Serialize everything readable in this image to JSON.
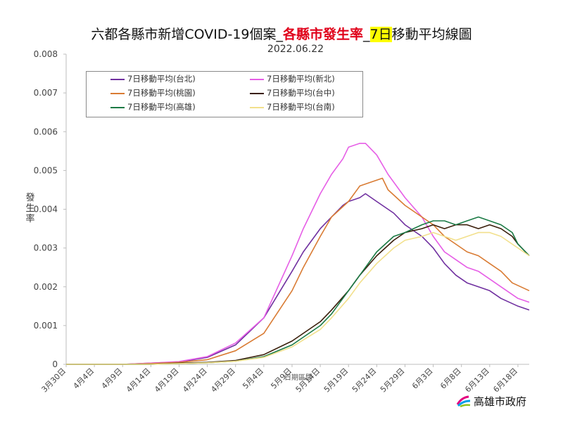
{
  "title": {
    "part1": "六都各縣市新增COVID-19個案_",
    "part2": "各縣市發生率",
    "part3": "_",
    "part4": "7日",
    "part5": "移動平均線圖"
  },
  "subtitle": "2022.06.22",
  "footer": "高雄市政府",
  "colors": {
    "accent_red": "#e0001a",
    "highlight": "#ffff00"
  },
  "chart_data": {
    "type": "line",
    "ylabel": "發\n生\n率",
    "xlabel": "日期區間",
    "ylim": [
      0,
      0.008
    ],
    "yticks": [
      "0",
      "0.001",
      "0.002",
      "0.003",
      "0.004",
      "0.005",
      "0.006",
      "0.007",
      "0.008"
    ],
    "x_start": "3月30日",
    "x_end": "6月20日",
    "x_ticks": [
      "3月30日",
      "4月4日",
      "4月9日",
      "4月14日",
      "4月19日",
      "4月24日",
      "4月29日",
      "5月4日",
      "5月9日",
      "5月14日",
      "5月19日",
      "5月24日",
      "5月29日",
      "6月3日",
      "6月8日",
      "6月13日",
      "6月18日"
    ],
    "grid": false,
    "legend_position": "top-left",
    "series": [
      {
        "name": "7日移動平均(台北)",
        "color": "#7030a0",
        "points": [
          [
            "3月30日",
            0
          ],
          [
            "4月9日",
            0
          ],
          [
            "4月14日",
            3e-05
          ],
          [
            "4月19日",
            6e-05
          ],
          [
            "4月24日",
            0.00018
          ],
          [
            "4月29日",
            0.0005
          ],
          [
            "5月4日",
            0.0012
          ],
          [
            "5月9日",
            0.0024
          ],
          [
            "5月11日",
            0.0029
          ],
          [
            "5月14日",
            0.0035
          ],
          [
            "5月16日",
            0.0038
          ],
          [
            "5月18日",
            0.0041
          ],
          [
            "5月19日",
            0.0042
          ],
          [
            "5月21日",
            0.0043
          ],
          [
            "5月22日",
            0.0044
          ],
          [
            "5月24日",
            0.0042
          ],
          [
            "5月27日",
            0.0039
          ],
          [
            "5月29日",
            0.0036
          ],
          [
            "6月1日",
            0.0033
          ],
          [
            "6月3日",
            0.003
          ],
          [
            "6月5日",
            0.0026
          ],
          [
            "6月7日",
            0.0023
          ],
          [
            "6月9日",
            0.0021
          ],
          [
            "6月11日",
            0.002
          ],
          [
            "6月13日",
            0.0019
          ],
          [
            "6月15日",
            0.0017
          ],
          [
            "6月18日",
            0.0015
          ],
          [
            "6月20日",
            0.0014
          ]
        ]
      },
      {
        "name": "7日移動平均(新北)",
        "color": "#e65ee6",
        "points": [
          [
            "3月30日",
            0
          ],
          [
            "4月9日",
            0
          ],
          [
            "4月14日",
            3e-05
          ],
          [
            "4月19日",
            7e-05
          ],
          [
            "4月24日",
            0.0002
          ],
          [
            "4月29日",
            0.00055
          ],
          [
            "5月4日",
            0.0012
          ],
          [
            "5月9日",
            0.0028
          ],
          [
            "5月11日",
            0.0035
          ],
          [
            "5月14日",
            0.0044
          ],
          [
            "5月16日",
            0.0049
          ],
          [
            "5月18日",
            0.0053
          ],
          [
            "5月19日",
            0.0056
          ],
          [
            "5月21日",
            0.0057
          ],
          [
            "5月22日",
            0.0057
          ],
          [
            "5月24日",
            0.0054
          ],
          [
            "5月26日",
            0.0049
          ],
          [
            "5月29日",
            0.0043
          ],
          [
            "6月1日",
            0.0038
          ],
          [
            "6月3日",
            0.0033
          ],
          [
            "6月5日",
            0.0029
          ],
          [
            "6月7日",
            0.0027
          ],
          [
            "6月9日",
            0.0025
          ],
          [
            "6月11日",
            0.0024
          ],
          [
            "6月13日",
            0.0022
          ],
          [
            "6月15日",
            0.002
          ],
          [
            "6月18日",
            0.0017
          ],
          [
            "6月20日",
            0.0016
          ]
        ]
      },
      {
        "name": "7日移動平均(桃園)",
        "color": "#d97b33",
        "points": [
          [
            "3月30日",
            0
          ],
          [
            "4月9日",
            0
          ],
          [
            "4月14日",
            2e-05
          ],
          [
            "4月19日",
            5e-05
          ],
          [
            "4月24日",
            0.00012
          ],
          [
            "4月29日",
            0.00035
          ],
          [
            "5月4日",
            0.0008
          ],
          [
            "5月9日",
            0.0019
          ],
          [
            "5月11日",
            0.0025
          ],
          [
            "5月14日",
            0.0033
          ],
          [
            "5月16日",
            0.0038
          ],
          [
            "5月19日",
            0.0042
          ],
          [
            "5月21日",
            0.0046
          ],
          [
            "5月23日",
            0.0047
          ],
          [
            "5月25日",
            0.0048
          ],
          [
            "5月26日",
            0.0045
          ],
          [
            "5月29日",
            0.0041
          ],
          [
            "6月1日",
            0.0038
          ],
          [
            "6月3日",
            0.0036
          ],
          [
            "6月5日",
            0.0033
          ],
          [
            "6月7日",
            0.0031
          ],
          [
            "6月9日",
            0.0029
          ],
          [
            "6月11日",
            0.0028
          ],
          [
            "6月13日",
            0.0026
          ],
          [
            "6月15日",
            0.0024
          ],
          [
            "6月17日",
            0.0021
          ],
          [
            "6月20日",
            0.0019
          ]
        ]
      },
      {
        "name": "7日移動平均(台中)",
        "color": "#3a1f0b",
        "points": [
          [
            "3月30日",
            0
          ],
          [
            "4月14日",
            0
          ],
          [
            "4月19日",
            3e-05
          ],
          [
            "4月24日",
            5e-05
          ],
          [
            "4月29日",
            0.0001
          ],
          [
            "5月4日",
            0.00025
          ],
          [
            "5月9日",
            0.0006
          ],
          [
            "5月14日",
            0.0011
          ],
          [
            "5月16日",
            0.0014
          ],
          [
            "5月19日",
            0.0019
          ],
          [
            "5月21日",
            0.0023
          ],
          [
            "5月24日",
            0.0028
          ],
          [
            "5月27日",
            0.0032
          ],
          [
            "5月29日",
            0.0034
          ],
          [
            "6月1日",
            0.0035
          ],
          [
            "6月3日",
            0.0036
          ],
          [
            "6月5日",
            0.0035
          ],
          [
            "6月7日",
            0.0036
          ],
          [
            "6月9日",
            0.0036
          ],
          [
            "6月11日",
            0.0035
          ],
          [
            "6月13日",
            0.0036
          ],
          [
            "6月15日",
            0.0035
          ],
          [
            "6月17日",
            0.0033
          ],
          [
            "6月18日",
            0.0031
          ],
          [
            "6月20日",
            0.0028
          ]
        ]
      },
      {
        "name": "7日移動平均(高雄)",
        "color": "#1b7a45",
        "points": [
          [
            "3月30日",
            0
          ],
          [
            "4月14日",
            0
          ],
          [
            "4月19日",
            2e-05
          ],
          [
            "4月24日",
            4e-05
          ],
          [
            "4月29日",
            8e-05
          ],
          [
            "5月4日",
            0.0002
          ],
          [
            "5月9日",
            0.0005
          ],
          [
            "5月14日",
            0.001
          ],
          [
            "5月16日",
            0.0013
          ],
          [
            "5月19日",
            0.0019
          ],
          [
            "5月21日",
            0.0023
          ],
          [
            "5月24日",
            0.0029
          ],
          [
            "5月27日",
            0.0033
          ],
          [
            "5月29日",
            0.0034
          ],
          [
            "6月1日",
            0.0036
          ],
          [
            "6月3日",
            0.0037
          ],
          [
            "6月5日",
            0.0037
          ],
          [
            "6月7日",
            0.0036
          ],
          [
            "6月9日",
            0.0037
          ],
          [
            "6月11日",
            0.0038
          ],
          [
            "6月13日",
            0.0037
          ],
          [
            "6月15日",
            0.0036
          ],
          [
            "6月17日",
            0.0034
          ],
          [
            "6月18日",
            0.0031
          ],
          [
            "6月20日",
            0.0028
          ]
        ]
      },
      {
        "name": "7日移動平均(台南)",
        "color": "#f2e08c",
        "points": [
          [
            "3月30日",
            0
          ],
          [
            "4月14日",
            0
          ],
          [
            "4月19日",
            2e-05
          ],
          [
            "4月24日",
            4e-05
          ],
          [
            "4月29日",
            8e-05
          ],
          [
            "5月4日",
            0.00018
          ],
          [
            "5月9日",
            0.00045
          ],
          [
            "5月14日",
            0.0009
          ],
          [
            "5月16日",
            0.0012
          ],
          [
            "5月19日",
            0.0017
          ],
          [
            "5月21日",
            0.0021
          ],
          [
            "5月24日",
            0.0026
          ],
          [
            "5月27日",
            0.003
          ],
          [
            "5月29日",
            0.0032
          ],
          [
            "6月1日",
            0.0033
          ],
          [
            "6月3日",
            0.0034
          ],
          [
            "6月5日",
            0.0033
          ],
          [
            "6月7日",
            0.0032
          ],
          [
            "6月9日",
            0.0033
          ],
          [
            "6月11日",
            0.0034
          ],
          [
            "6月13日",
            0.0034
          ],
          [
            "6月15日",
            0.0033
          ],
          [
            "6月17日",
            0.0031
          ],
          [
            "6月18日",
            0.003
          ],
          [
            "6月20日",
            0.0028
          ]
        ]
      }
    ]
  }
}
